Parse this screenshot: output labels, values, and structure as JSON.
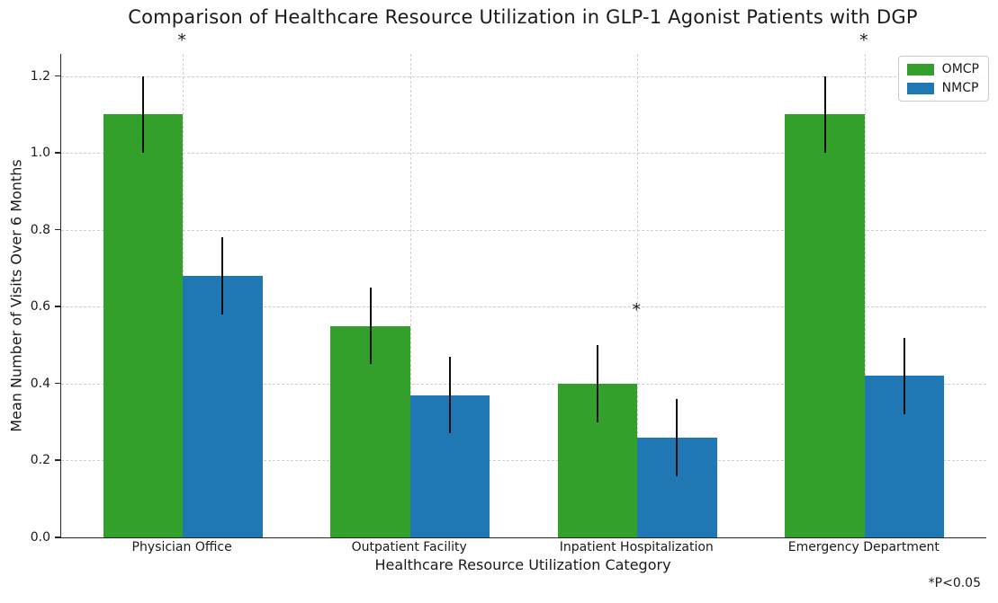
{
  "chart_data": {
    "type": "bar",
    "title": "Comparison of Healthcare Resource Utilization in GLP-1 Agonist Patients with DGP",
    "xlabel": "Healthcare Resource Utilization Category",
    "ylabel": "Mean Number of Visits Over 6 Months",
    "categories": [
      "Physician Office",
      "Outpatient Facility",
      "Inpatient Hospitalization",
      "Emergency Department"
    ],
    "series": [
      {
        "name": "OMCP",
        "color": "#33a02c",
        "values": [
          1.1,
          0.55,
          0.4,
          1.1
        ],
        "error_bars": [
          0.1,
          0.1,
          0.1,
          0.1
        ]
      },
      {
        "name": "NMCP",
        "color": "#1f78b4",
        "values": [
          0.68,
          0.37,
          0.26,
          0.42
        ],
        "error_bars": [
          0.1,
          0.1,
          0.1,
          0.1
        ]
      }
    ],
    "significance_markers": [
      {
        "category": "Physician Office",
        "symbol": "*"
      },
      {
        "category": "Inpatient Hospitalization",
        "symbol": "*"
      },
      {
        "category": "Emergency Department",
        "symbol": "*"
      }
    ],
    "ytick_labels": [
      "0.0",
      "0.2",
      "0.4",
      "0.6",
      "0.8",
      "1.0",
      "1.2"
    ],
    "yticks": [
      0.0,
      0.2,
      0.4,
      0.6,
      0.8,
      1.0,
      1.2
    ],
    "ylim": [
      0,
      1.2577
    ],
    "grid": true,
    "legend_position": "upper right",
    "footnote": "*P<0.05"
  }
}
